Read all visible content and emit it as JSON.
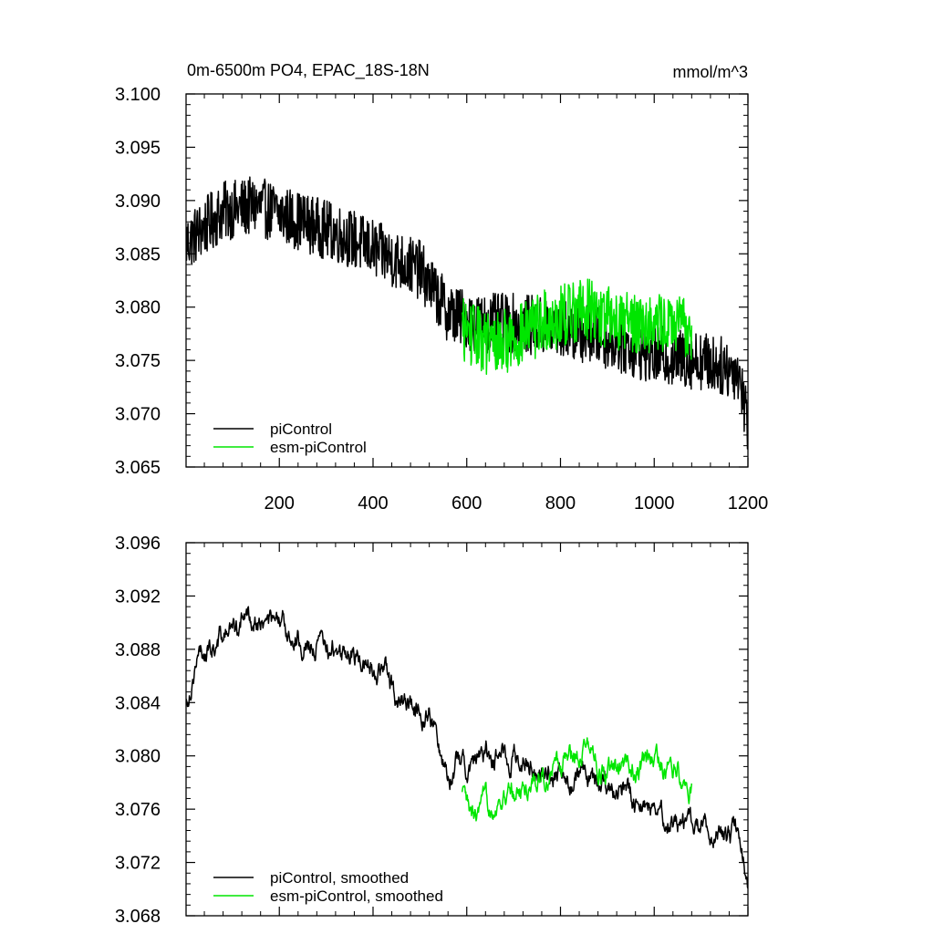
{
  "charts": [
    {
      "type": "line",
      "title": "0m-6500m PO4, EPAC_18S-18N",
      "units": "mmol/m^3",
      "x_range": [
        1,
        1200
      ],
      "y_range": [
        3.065,
        3.1
      ],
      "y_ticks": [
        "3.065",
        "3.070",
        "3.075",
        "3.080",
        "3.085",
        "3.090",
        "3.095",
        "3.100"
      ],
      "x_ticks": [
        "200",
        "400",
        "600",
        "800",
        "1000",
        "1200"
      ],
      "series": [
        {
          "name": "piControl",
          "color": "#000000",
          "x_start": 1,
          "x_end": 1200,
          "noise": 0.0028,
          "trend": [
            [
              1,
              3.086
            ],
            [
              80,
              3.089
            ],
            [
              150,
              3.0895
            ],
            [
              250,
              3.088
            ],
            [
              350,
              3.0865
            ],
            [
              420,
              3.085
            ],
            [
              500,
              3.0835
            ],
            [
              560,
              3.0795
            ],
            [
              620,
              3.0785
            ],
            [
              700,
              3.0785
            ],
            [
              800,
              3.078
            ],
            [
              900,
              3.077
            ],
            [
              1000,
              3.0755
            ],
            [
              1100,
              3.075
            ],
            [
              1180,
              3.074
            ],
            [
              1200,
              3.069
            ]
          ]
        },
        {
          "name": "esm-piControl",
          "color": "#00e600",
          "x_start": 590,
          "x_end": 1080,
          "noise": 0.003,
          "trend": [
            [
              590,
              3.078
            ],
            [
              650,
              3.0765
            ],
            [
              700,
              3.077
            ],
            [
              760,
              3.0785
            ],
            [
              850,
              3.08
            ],
            [
              900,
              3.079
            ],
            [
              1000,
              3.0785
            ],
            [
              1080,
              3.078
            ]
          ]
        }
      ]
    },
    {
      "type": "line",
      "title": "",
      "units": "",
      "x_range": [
        1,
        1200
      ],
      "y_range": [
        3.068,
        3.096
      ],
      "y_ticks": [
        "3.068",
        "3.072",
        "3.076",
        "3.080",
        "3.084",
        "3.088",
        "3.092",
        "3.096"
      ],
      "x_ticks": [],
      "series": [
        {
          "name": "piControl, smoothed",
          "color": "#000000",
          "x_start": 1,
          "x_end": 1200,
          "noise": 0.001,
          "trend": [
            [
              1,
              3.084
            ],
            [
              20,
              3.087
            ],
            [
              80,
              3.089
            ],
            [
              140,
              3.0905
            ],
            [
              200,
              3.0895
            ],
            [
              300,
              3.088
            ],
            [
              370,
              3.0875
            ],
            [
              420,
              3.0865
            ],
            [
              460,
              3.084
            ],
            [
              520,
              3.0835
            ],
            [
              545,
              3.08
            ],
            [
              560,
              3.079
            ],
            [
              600,
              3.0795
            ],
            [
              650,
              3.08
            ],
            [
              700,
              3.08
            ],
            [
              750,
              3.079
            ],
            [
              800,
              3.0785
            ],
            [
              900,
              3.0775
            ],
            [
              1000,
              3.076
            ],
            [
              1100,
              3.0745
            ],
            [
              1180,
              3.074
            ],
            [
              1200,
              3.0705
            ]
          ]
        },
        {
          "name": "esm-piControl, smoothed",
          "color": "#00e600",
          "x_start": 590,
          "x_end": 1080,
          "noise": 0.001,
          "trend": [
            [
              590,
              3.077
            ],
            [
              610,
              3.075
            ],
            [
              660,
              3.0765
            ],
            [
              720,
              3.0775
            ],
            [
              780,
              3.079
            ],
            [
              850,
              3.081
            ],
            [
              900,
              3.0785
            ],
            [
              950,
              3.079
            ],
            [
              1000,
              3.0795
            ],
            [
              1050,
              3.079
            ],
            [
              1080,
              3.078
            ]
          ]
        }
      ]
    }
  ],
  "chart_data": [
    {
      "type": "line",
      "title": "0m-6500m PO4, EPAC_18S-18N",
      "ylabel": "mmol/m^3",
      "xlim": [
        1,
        1200
      ],
      "ylim": [
        3.065,
        3.1
      ],
      "series": [
        {
          "name": "piControl",
          "x": [
            1,
            80,
            150,
            250,
            350,
            420,
            500,
            560,
            620,
            700,
            800,
            900,
            1000,
            1100,
            1180,
            1200
          ],
          "values": [
            3.086,
            3.089,
            3.0895,
            3.088,
            3.0865,
            3.085,
            3.0835,
            3.0795,
            3.0785,
            3.0785,
            3.078,
            3.077,
            3.0755,
            3.075,
            3.074,
            3.069
          ]
        },
        {
          "name": "esm-piControl",
          "x": [
            590,
            650,
            700,
            760,
            850,
            900,
            1000,
            1080
          ],
          "values": [
            3.078,
            3.0765,
            3.077,
            3.0785,
            3.08,
            3.079,
            3.0785,
            3.078
          ]
        }
      ]
    },
    {
      "type": "line",
      "xlim": [
        1,
        1200
      ],
      "ylim": [
        3.068,
        3.096
      ],
      "series": [
        {
          "name": "piControl, smoothed",
          "x": [
            1,
            80,
            140,
            200,
            300,
            420,
            520,
            560,
            700,
            900,
            1100,
            1200
          ],
          "values": [
            3.084,
            3.089,
            3.0905,
            3.0895,
            3.088,
            3.0865,
            3.0835,
            3.079,
            3.08,
            3.0775,
            3.0745,
            3.0705
          ]
        },
        {
          "name": "esm-piControl, smoothed",
          "x": [
            590,
            610,
            720,
            850,
            900,
            1000,
            1080
          ],
          "values": [
            3.077,
            3.075,
            3.0775,
            3.081,
            3.0785,
            3.0795,
            3.078
          ]
        }
      ]
    }
  ]
}
